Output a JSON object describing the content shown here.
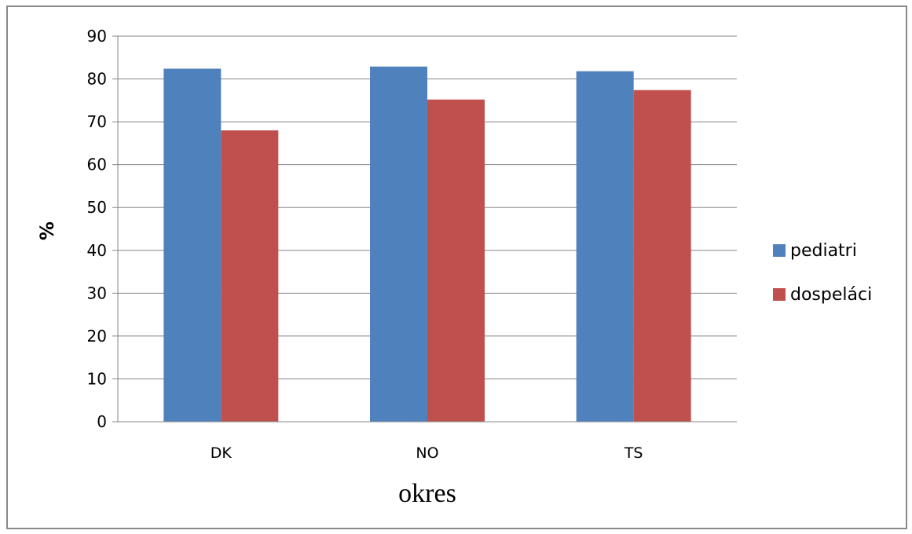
{
  "chart_data": {
    "type": "bar",
    "categories": [
      "DK",
      "NO",
      "TS"
    ],
    "series": [
      {
        "name": "pediatri",
        "values": [
          82.4,
          82.9,
          81.8
        ],
        "color": "#4F81BD"
      },
      {
        "name": "dospeláci",
        "values": [
          68.0,
          75.2,
          77.4
        ],
        "color": "#C0504D"
      }
    ],
    "yticks": [
      "0",
      "10",
      "20",
      "30",
      "40",
      "50",
      "60",
      "70",
      "80",
      "90"
    ],
    "ylim": [
      0,
      90
    ],
    "xlabel": "okres",
    "ylabel": "%",
    "grid": true,
    "legend_position": "right"
  }
}
